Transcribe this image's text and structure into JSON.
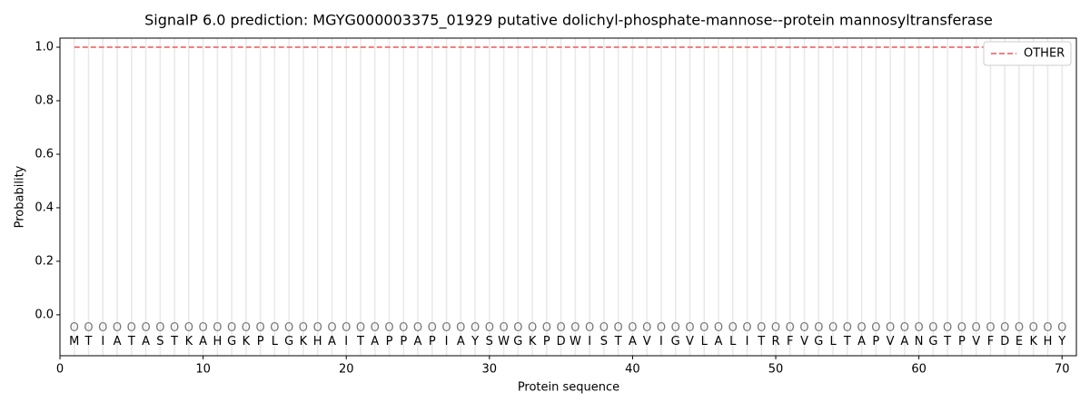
{
  "chart_data": {
    "type": "line",
    "title": "SignalP 6.0 prediction: MGYG000003375_01929 putative dolichyl-phosphate-mannose--protein mannosyltransferase",
    "xlabel": "Protein sequence",
    "ylabel": "Probability",
    "x": [
      1,
      2,
      3,
      4,
      5,
      6,
      7,
      8,
      9,
      10,
      11,
      12,
      13,
      14,
      15,
      16,
      17,
      18,
      19,
      20,
      21,
      22,
      23,
      24,
      25,
      26,
      27,
      28,
      29,
      30,
      31,
      32,
      33,
      34,
      35,
      36,
      37,
      38,
      39,
      40,
      41,
      42,
      43,
      44,
      45,
      46,
      47,
      48,
      49,
      50,
      51,
      52,
      53,
      54,
      55,
      56,
      57,
      58,
      59,
      60,
      61,
      62,
      63,
      64,
      65,
      66,
      67,
      68,
      69,
      70
    ],
    "residues": [
      "M",
      "T",
      "I",
      "A",
      "T",
      "A",
      "S",
      "T",
      "K",
      "A",
      "H",
      "G",
      "K",
      "P",
      "L",
      "G",
      "K",
      "H",
      "A",
      "I",
      "T",
      "A",
      "P",
      "P",
      "A",
      "P",
      "I",
      "A",
      "Y",
      "S",
      "W",
      "G",
      "K",
      "P",
      "D",
      "W",
      "I",
      "S",
      "T",
      "A",
      "V",
      "I",
      "G",
      "V",
      "L",
      "A",
      "L",
      "I",
      "T",
      "R",
      "F",
      "V",
      "G",
      "L",
      "T",
      "A",
      "P",
      "V",
      "A",
      "N",
      "G",
      "T",
      "P",
      "V",
      "F",
      "D",
      "E",
      "K",
      "H",
      "Y"
    ],
    "predicted_labels": [
      "O",
      "O",
      "O",
      "O",
      "O",
      "O",
      "O",
      "O",
      "O",
      "O",
      "O",
      "O",
      "O",
      "O",
      "O",
      "O",
      "O",
      "O",
      "O",
      "O",
      "O",
      "O",
      "O",
      "O",
      "O",
      "O",
      "O",
      "O",
      "O",
      "O",
      "O",
      "O",
      "O",
      "O",
      "O",
      "O",
      "O",
      "O",
      "O",
      "O",
      "O",
      "O",
      "O",
      "O",
      "O",
      "O",
      "O",
      "O",
      "O",
      "O",
      "O",
      "O",
      "O",
      "O",
      "O",
      "O",
      "O",
      "O",
      "O",
      "O",
      "O",
      "O",
      "O",
      "O",
      "O",
      "O",
      "O",
      "O",
      "O",
      "O"
    ],
    "series": [
      {
        "name": "OTHER",
        "color": "#f08080",
        "dash": true,
        "values": [
          1,
          1,
          1,
          1,
          1,
          1,
          1,
          1,
          1,
          1,
          1,
          1,
          1,
          1,
          1,
          1,
          1,
          1,
          1,
          1,
          1,
          1,
          1,
          1,
          1,
          1,
          1,
          1,
          1,
          1,
          1,
          1,
          1,
          1,
          1,
          1,
          1,
          1,
          1,
          1,
          1,
          1,
          1,
          1,
          1,
          1,
          1,
          1,
          1,
          1,
          1,
          1,
          1,
          1,
          1,
          1,
          1,
          1,
          1,
          1,
          1,
          1,
          1,
          1,
          1,
          1,
          1,
          1,
          1,
          1
        ]
      }
    ],
    "xlim": [
      0,
      71
    ],
    "ylim": [
      -0.153,
      1.034
    ],
    "xticks": [
      0,
      10,
      20,
      30,
      40,
      50,
      60,
      70
    ],
    "yticks": [
      {
        "value": 0,
        "label": "0.0"
      },
      {
        "value": 0.2,
        "label": "0.2"
      },
      {
        "value": 0.4,
        "label": "0.4"
      },
      {
        "value": 0.6,
        "label": "0.6"
      },
      {
        "value": 0.8,
        "label": "0.8"
      },
      {
        "value": 1,
        "label": "1.0"
      }
    ],
    "legend": "upper right"
  }
}
